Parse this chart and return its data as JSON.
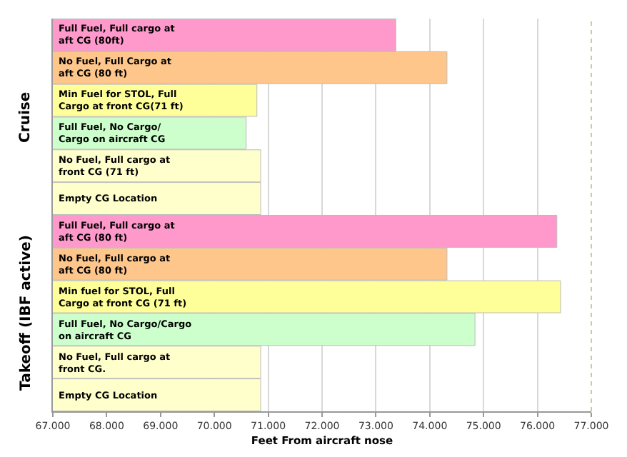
{
  "chart_data": {
    "type": "bar",
    "orientation": "horizontal",
    "xlabel": "Feet From aircraft nose",
    "categories": [
      "Full Fuel, Full cargo at aft CG (80ft)",
      "No Fuel, Full Cargo at aft CG (80 ft)",
      "Min Fuel for STOL, Full Cargo at front CG(71 ft)",
      "Full Fuel, No Cargo/ Cargo on aircraft CG",
      "No Fuel, Full cargo at front CG (71 ft)",
      "Empty CG Location",
      "Full Fuel, Full cargo at aft CG (80 ft)",
      "No Fuel, Full cargo at aft CG (80 ft)",
      "Min fuel for STOL, Full Cargo at front CG (71 ft)",
      "Full Fuel, No Cargo/Cargo on aircraft CG",
      "No Fuel, Full cargo at front CG.",
      "Empty CG Location"
    ],
    "values": [
      73.37,
      74.32,
      70.79,
      70.59,
      70.86,
      70.86,
      76.36,
      74.32,
      76.43,
      74.84,
      70.86,
      70.86
    ],
    "colors": [
      "#ff99cc",
      "#ffc68c",
      "#ffff99",
      "#ccffcc",
      "#ffffcc",
      "#ffffcc",
      "#ff99cc",
      "#ffc68c",
      "#ffff99",
      "#ccffcc",
      "#ffffcc",
      "#ffffcc"
    ],
    "xlim": [
      67,
      77
    ],
    "xticks": [
      {
        "value": 67,
        "label": "67.000"
      },
      {
        "value": 68,
        "label": "68.000"
      },
      {
        "value": 69,
        "label": "69.000"
      },
      {
        "value": 70,
        "label": "70.000"
      },
      {
        "value": 71,
        "label": "71.000"
      },
      {
        "value": 72,
        "label": "72.000"
      },
      {
        "value": 73,
        "label": "73.000"
      },
      {
        "value": 74,
        "label": "74.000"
      },
      {
        "value": 75,
        "label": "75.000"
      },
      {
        "value": 76,
        "label": "76.000"
      },
      {
        "value": 77,
        "label": "77.000"
      }
    ],
    "grid": "x",
    "annotations": [
      "Cruise",
      "Takeoff (IBF active)"
    ]
  }
}
